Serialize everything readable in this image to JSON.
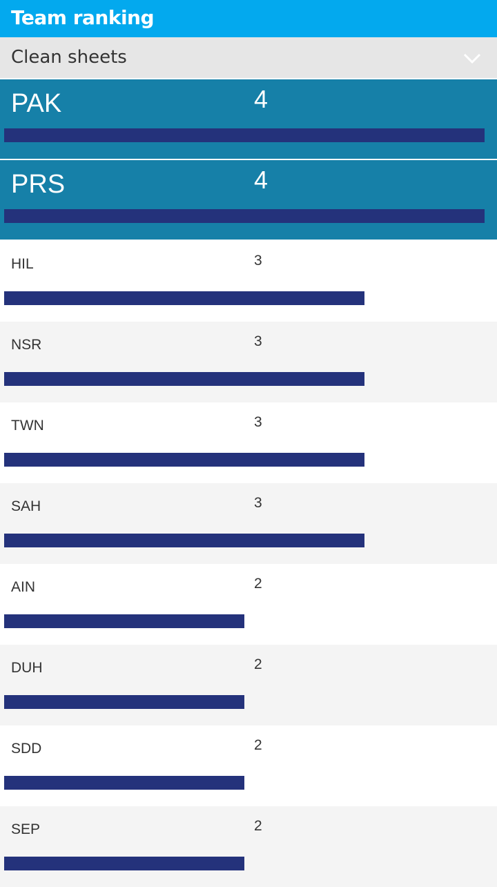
{
  "header": {
    "title": "Team ranking"
  },
  "selector": {
    "value": "Clean sheets",
    "icon": "chevron-down-icon"
  },
  "colors": {
    "header": "#03a9ee",
    "highlight_row": "#1680a8",
    "bar": "#24327b"
  },
  "max_value": 4,
  "ranking": [
    {
      "team": "PAK",
      "value": "4"
    },
    {
      "team": "PRS",
      "value": "4"
    },
    {
      "team": "HIL",
      "value": "3"
    },
    {
      "team": "NSR",
      "value": "3"
    },
    {
      "team": "TWN",
      "value": "3"
    },
    {
      "team": "SAH",
      "value": "3"
    },
    {
      "team": "AIN",
      "value": "2"
    },
    {
      "team": "DUH",
      "value": "2"
    },
    {
      "team": "SDD",
      "value": "2"
    },
    {
      "team": "SEP",
      "value": "2"
    }
  ]
}
